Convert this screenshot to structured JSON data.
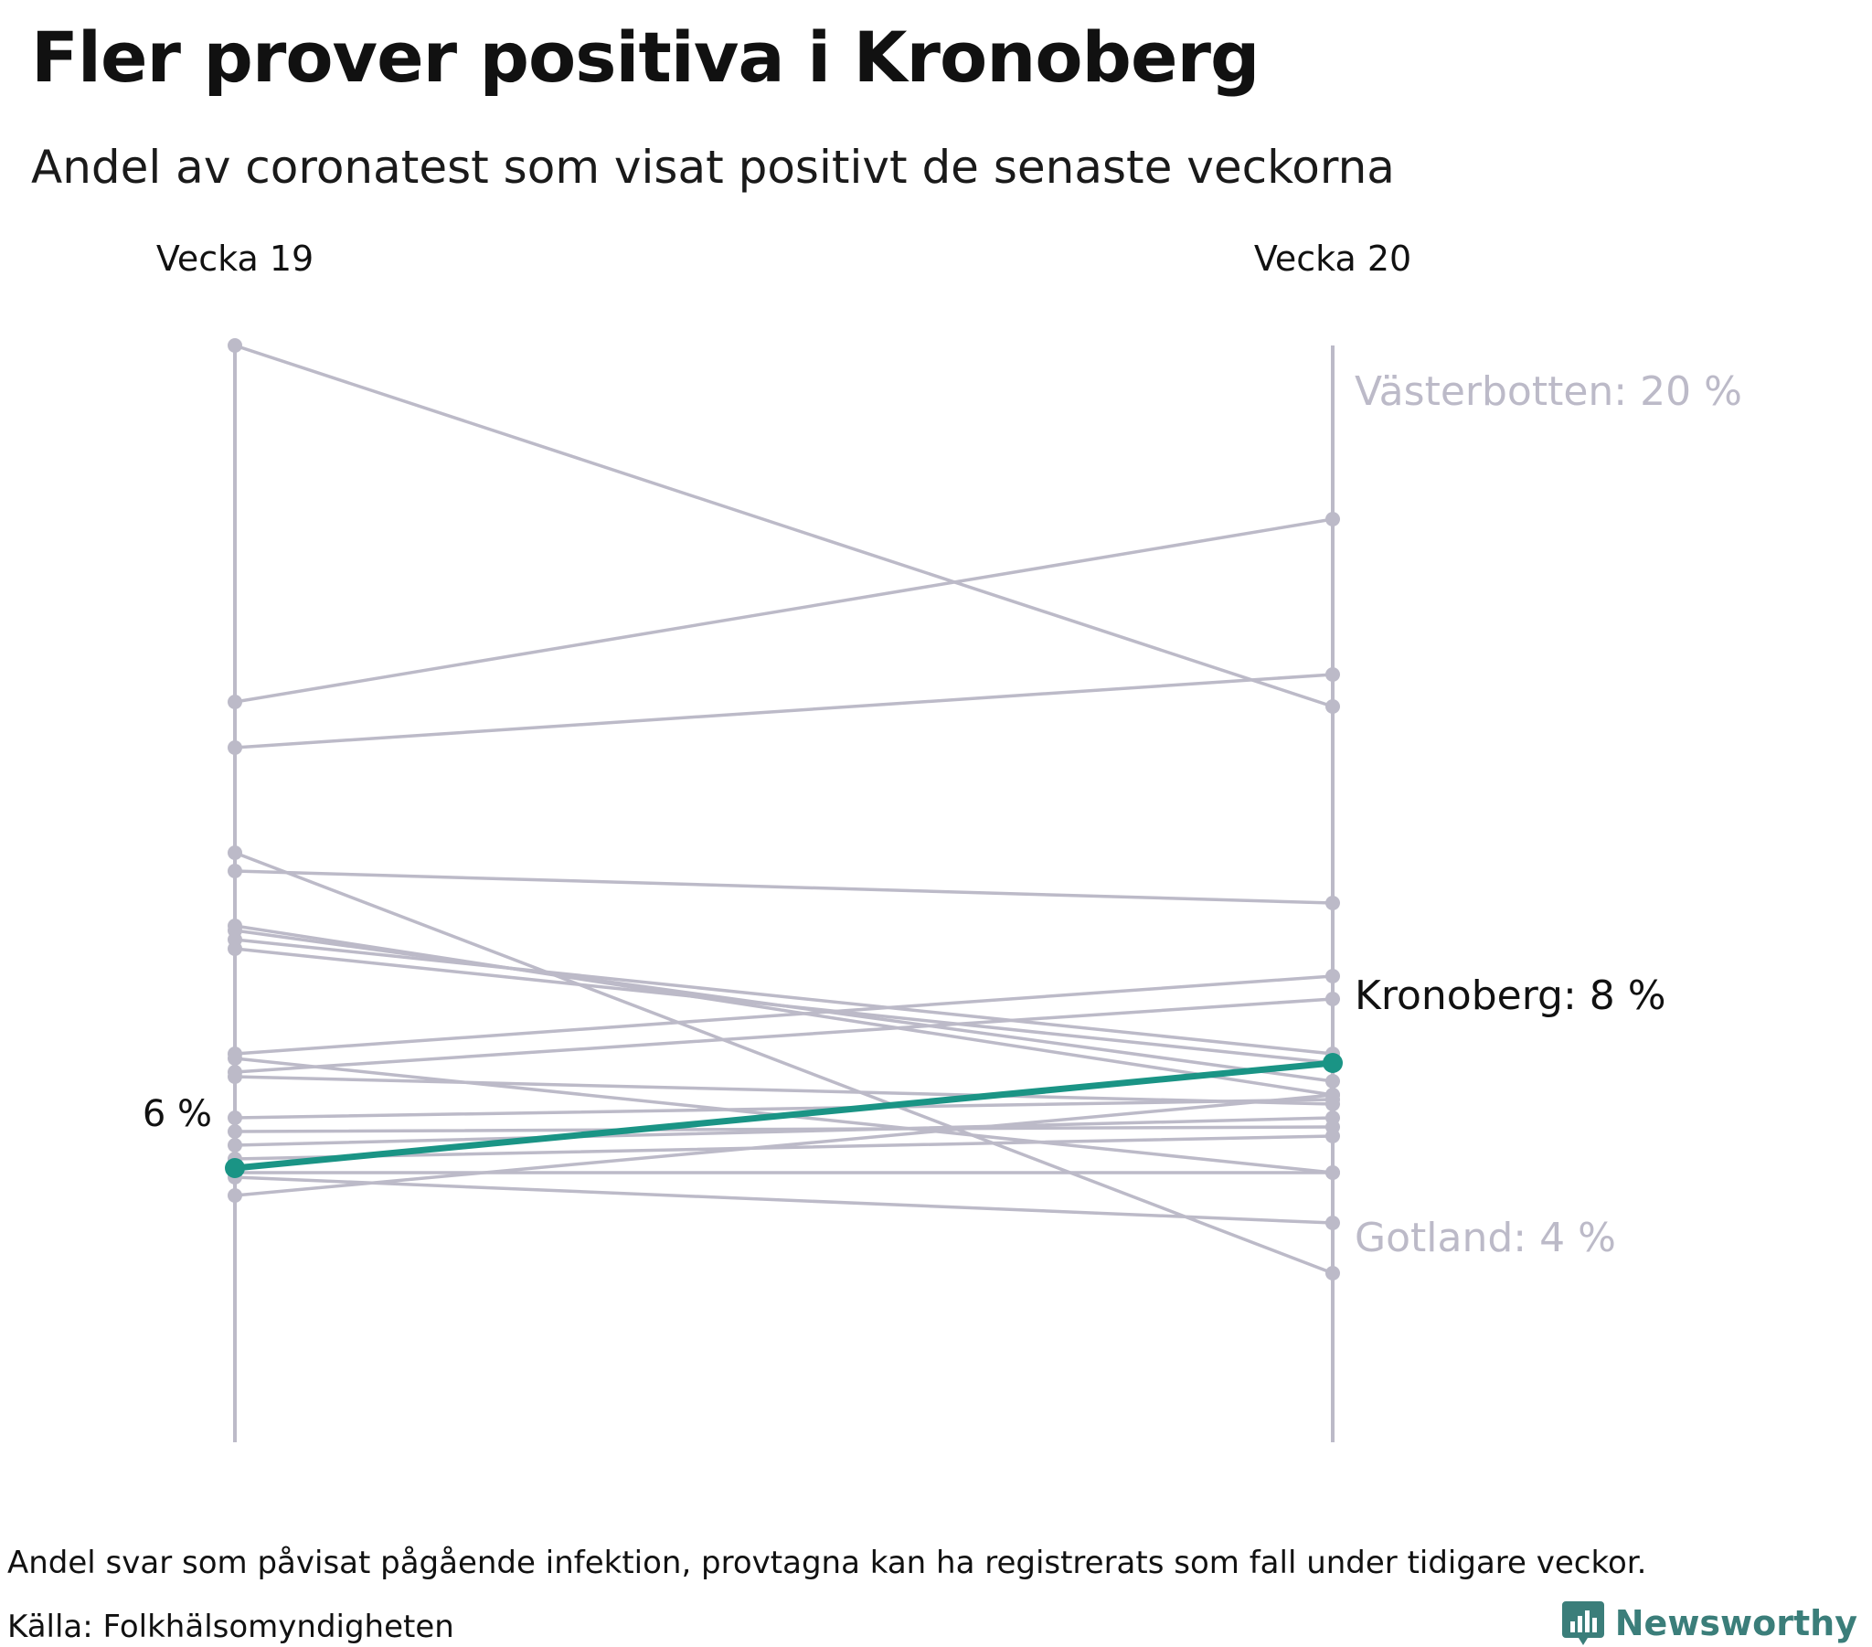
{
  "chart_data": {
    "type": "line",
    "title": "Fler prover positiva i Kronoberg",
    "subtitle": "Andel av coronatest som visat positivt de senaste veckorna",
    "categories": [
      "Vecka 19",
      "Vecka 20"
    ],
    "ylim": [
      0,
      24
    ],
    "highlight_color": "#1a9485",
    "muted_color": "#bcbac8",
    "series": [
      {
        "name": "Kronoberg",
        "values": [
          6.0,
          8.3
        ],
        "highlight": true,
        "start_label": "6 %",
        "end_label": "Kronoberg: 8 %"
      },
      {
        "name": "Västerbotten",
        "values": [
          16.2,
          20.2
        ],
        "end_label": "Västerbotten: 20 %",
        "labeled": true
      },
      {
        "name": "Gotland",
        "values": [
          12.9,
          3.7
        ],
        "end_label": "Gotland: 4 %",
        "labeled": true
      },
      {
        "name": "",
        "values": [
          24.0,
          16.1
        ]
      },
      {
        "name": "",
        "values": [
          15.2,
          16.8
        ]
      },
      {
        "name": "",
        "values": [
          12.5,
          11.8
        ]
      },
      {
        "name": "",
        "values": [
          10.8,
          8.3
        ]
      },
      {
        "name": "",
        "values": [
          11.3,
          7.6
        ]
      },
      {
        "name": "",
        "values": [
          11.2,
          7.9
        ]
      },
      {
        "name": "",
        "values": [
          11.0,
          8.5
        ]
      },
      {
        "name": "",
        "values": [
          8.5,
          10.2
        ]
      },
      {
        "name": "",
        "values": [
          8.1,
          9.7
        ]
      },
      {
        "name": "",
        "values": [
          8.0,
          7.4
        ]
      },
      {
        "name": "",
        "values": [
          8.4,
          5.9
        ]
      },
      {
        "name": "",
        "values": [
          7.1,
          7.5
        ]
      },
      {
        "name": "",
        "values": [
          6.8,
          6.9
        ]
      },
      {
        "name": "",
        "values": [
          6.5,
          7.1
        ]
      },
      {
        "name": "",
        "values": [
          6.2,
          6.7
        ]
      },
      {
        "name": "",
        "values": [
          5.9,
          5.9
        ]
      },
      {
        "name": "",
        "values": [
          5.4,
          7.6
        ]
      },
      {
        "name": "",
        "values": [
          5.8,
          4.8
        ]
      }
    ]
  },
  "footer": {
    "note": "Andel svar som påvisat pågående infektion, provtagna kan ha registrerats som fall under tidigare veckor.",
    "source": "Källa: Folkhälsomyndigheten",
    "brand": "Newsworthy"
  },
  "icons": {
    "brand_logo": "newsworthy-logo-icon"
  }
}
